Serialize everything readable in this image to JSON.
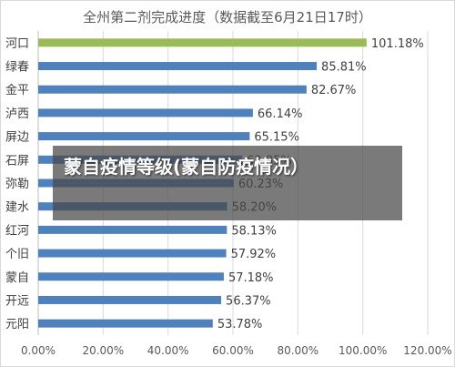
{
  "chart_data": {
    "type": "bar",
    "orientation": "horizontal",
    "title": "全州第二剂完成进度（数据截至6月21日17时）",
    "categories": [
      "河口",
      "绿春",
      "金平",
      "泸西",
      "屏边",
      "石屏",
      "弥勒",
      "建水",
      "红河",
      "个旧",
      "蒙自",
      "开远",
      "元阳"
    ],
    "values": [
      101.18,
      85.81,
      82.67,
      66.14,
      65.15,
      62.85,
      60.23,
      58.2,
      58.13,
      57.92,
      57.18,
      56.37,
      53.78
    ],
    "value_labels": [
      "101.18%",
      "85.81%",
      "82.67%",
      "66.14%",
      "65.15%",
      "62.85%",
      "60.23%",
      "58.20%",
      "58.13%",
      "57.92%",
      "57.18%",
      "56.37%",
      "53.78%"
    ],
    "xlim": [
      0,
      120
    ],
    "x_ticks": [
      "0.00%",
      "20.00%",
      "40.00%",
      "60.00%",
      "80.00%",
      "100.00%",
      "120.00%"
    ],
    "grid": true,
    "colors": {
      "highlight": "#9bbb59",
      "default": "#4f81bd"
    },
    "highlight_index": 0
  },
  "overlay": {
    "text": "蒙自疫情等级(蒙自防疫情况）"
  }
}
